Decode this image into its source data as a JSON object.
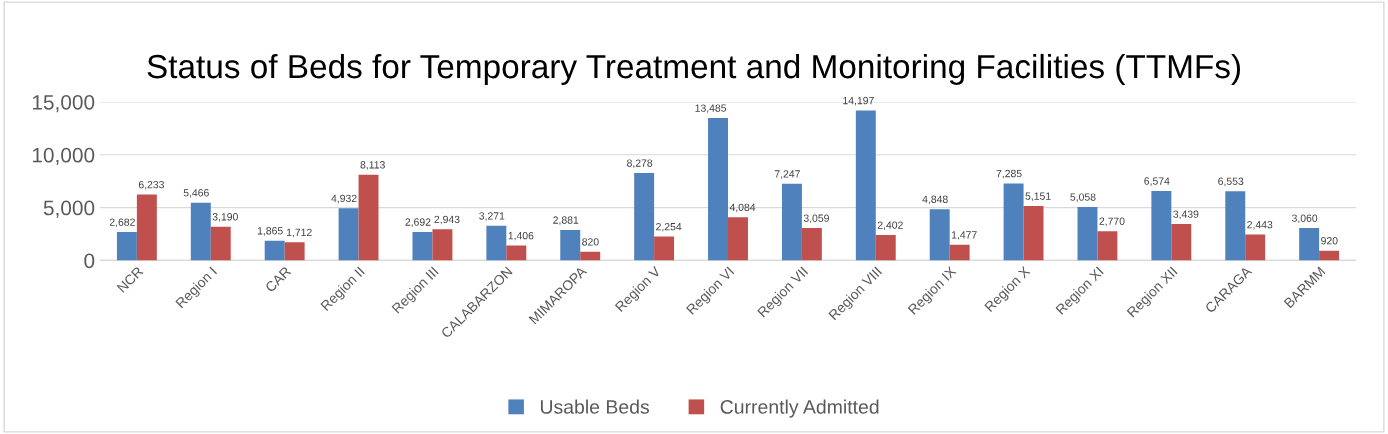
{
  "chart_data": {
    "type": "bar",
    "title": "Status of Beds for Temporary Treatment and Monitoring Facilities (TTMFs)",
    "categories": [
      "NCR",
      "Region I",
      "CAR",
      "Region II",
      "Region III",
      "CALABARZON",
      "MIMAROPA",
      "Region V",
      "Region VI",
      "Region VII",
      "Region VIII",
      "Region IX",
      "Region X",
      "Region XI",
      "Region XII",
      "CARAGA",
      "BARMM"
    ],
    "series": [
      {
        "name": "Usable Beds",
        "color": "#4f81bd",
        "values": [
          2682,
          5466,
          1865,
          4932,
          2692,
          3271,
          2881,
          8278,
          13485,
          7247,
          14197,
          4848,
          7285,
          5058,
          6574,
          6553,
          3060
        ],
        "value_labels": [
          "2,682",
          "5,466",
          "1,865",
          "4,932",
          "2,692",
          "3,271",
          "2,881",
          "8,278",
          "13,485",
          "7,247",
          "14,197",
          "4,848",
          "7,285",
          "5,058",
          "6,574",
          "6,553",
          "3,060"
        ]
      },
      {
        "name": "Currently Admitted",
        "color": "#c0504d",
        "values": [
          6233,
          3190,
          1712,
          8113,
          2943,
          1406,
          820,
          2254,
          4084,
          3059,
          2402,
          1477,
          5151,
          2770,
          3439,
          2443,
          920
        ],
        "value_labels": [
          "6,233",
          "3,190",
          "1,712",
          "8,113",
          "2,943",
          "1,406",
          "820",
          "2,254",
          "4,084",
          "3,059",
          "2,402",
          "1,477",
          "5,151",
          "2,770",
          "3,439",
          "2,443",
          "920"
        ]
      }
    ],
    "ylim": [
      0,
      15000
    ],
    "yticks": [
      {
        "value": 0,
        "label": "0"
      },
      {
        "value": 5000,
        "label": "5,000"
      },
      {
        "value": 10000,
        "label": "10,000"
      },
      {
        "value": 15000,
        "label": "15,000"
      }
    ],
    "grid": "y",
    "legend": "bottom"
  }
}
